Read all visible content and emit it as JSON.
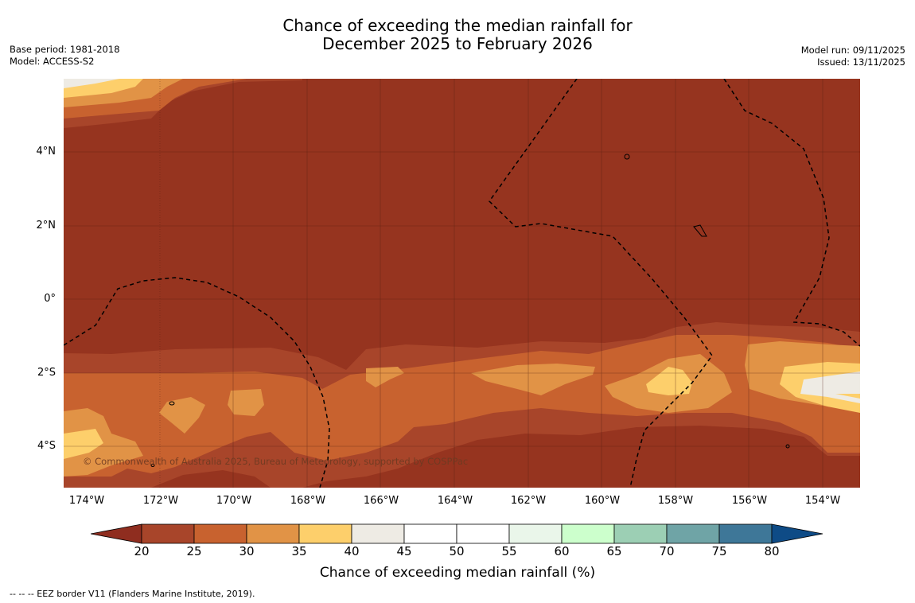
{
  "title": {
    "line1": "Chance of exceeding the median rainfall for",
    "line2": "December 2025 to February 2026"
  },
  "meta_left": {
    "base_period": "Base period: 1981-2018",
    "model": "Model: ACCESS-S2"
  },
  "meta_right": {
    "model_run": "Model run: 09/11/2025",
    "issued": "Issued: 13/11/2025"
  },
  "map": {
    "copyright": "© Commonwealth of Australia 2025, Bureau of Meteorology, supported by COSPPac",
    "lat_labels": [
      "4°N",
      "2°N",
      "0°",
      "2°S",
      "4°S"
    ],
    "lon_labels": [
      "174°W",
      "172°W",
      "170°W",
      "168°W",
      "166°W",
      "164°W",
      "162°W",
      "160°W",
      "158°W",
      "156°W",
      "154°W"
    ]
  },
  "colorbar": {
    "ticks": [
      "20",
      "25",
      "30",
      "35",
      "40",
      "45",
      "50",
      "55",
      "60",
      "65",
      "70",
      "75",
      "80"
    ],
    "colors": [
      "#a8452a",
      "#c8622f",
      "#e19346",
      "#fdcf6b",
      "#eeebe4",
      "#ffffff",
      "#ffffff",
      "#eaf6ea",
      "#ccffcc",
      "#9ccfb4",
      "#6fa4a6",
      "#3e7798"
    ],
    "below_color": "#8f2d1f",
    "above_color": "#0e4b86",
    "label": "Chance of exceeding median rainfall (%)"
  },
  "footnote": "--  --  -- EEZ border V11 (Flanders Marine Institute, 2019)."
}
